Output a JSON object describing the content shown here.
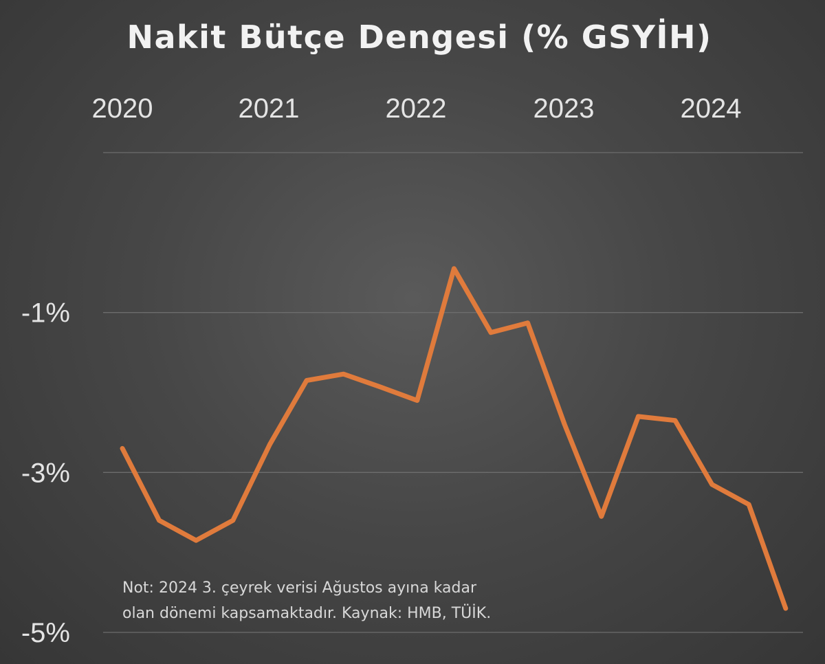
{
  "chart_data": {
    "type": "line",
    "title": "Nakit Bütçe Dengesi (% GSYİH)",
    "x_tick_labels": [
      "2020",
      "2021",
      "2022",
      "2023",
      "2024"
    ],
    "y_tick_labels": [
      "-1%",
      "-3%",
      "-5%"
    ],
    "y_ticks": [
      -1,
      -3,
      -5
    ],
    "ylim": [
      -5,
      1
    ],
    "grid": true,
    "legend": "none",
    "line_color": "#e07b3c",
    "series": [
      {
        "x": [
          "2020Q1",
          "2020Q2",
          "2020Q3",
          "2020Q4",
          "2021Q1",
          "2021Q2",
          "2021Q3",
          "2021Q4",
          "2022Q1",
          "2022Q2",
          "2022Q3",
          "2022Q4",
          "2023Q1",
          "2023Q2",
          "2023Q3",
          "2023Q4",
          "2024Q1",
          "2024Q2",
          "2024Q3"
        ],
        "values": [
          -2.7,
          -3.6,
          -3.85,
          -3.6,
          -2.65,
          -1.85,
          -1.77,
          -1.93,
          -2.1,
          -0.45,
          -1.25,
          -1.13,
          -2.4,
          -3.55,
          -2.3,
          -2.35,
          -3.15,
          -3.4,
          -4.7
        ]
      }
    ],
    "note": [
      "Not: 2024 3. çeyrek verisi Ağustos ayına kadar",
      "olan dönemi kapsamaktadır. Kaynak: HMB, TÜİK."
    ]
  }
}
